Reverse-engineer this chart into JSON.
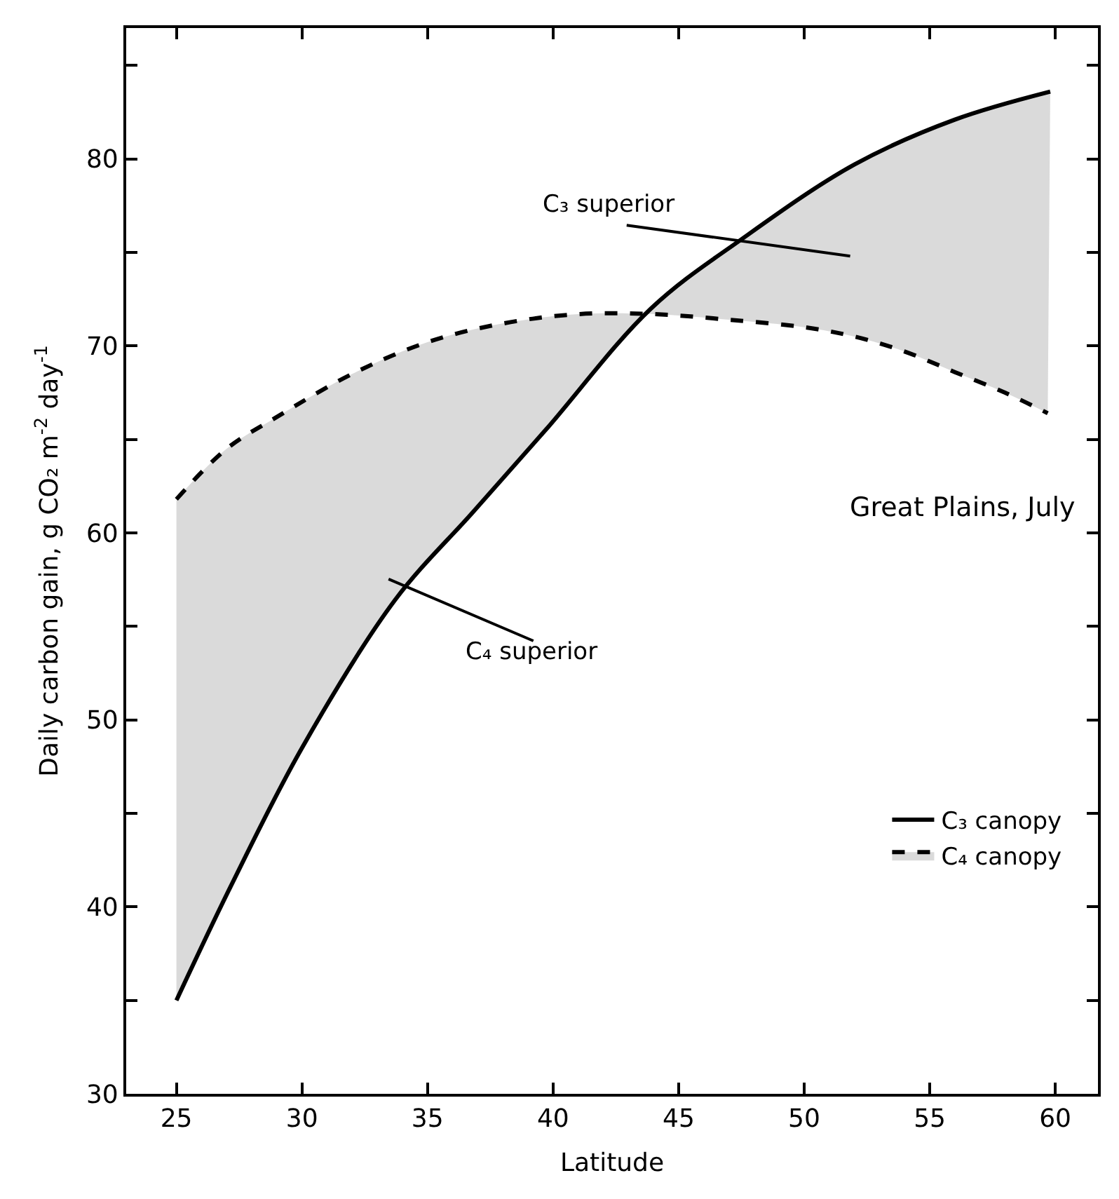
{
  "chart_data": {
    "type": "line",
    "xlabel": "Latitude",
    "ylabel": "Daily carbon gain, g CO₂ m$^{-2}$ day$^{-1}$",
    "series": [
      {
        "name": "C₃ canopy",
        "color": "#000000",
        "line_style": "solid",
        "x": [
          25,
          27.2,
          30,
          33.7,
          36.8,
          39.7,
          43.9,
          47.5,
          52,
          56,
          59.8
        ],
        "values": [
          35,
          41.2,
          48.5,
          56.4,
          61.1,
          65.5,
          72,
          75.7,
          79.7,
          82.1,
          83.6
        ]
      },
      {
        "name": "C₄ canopy",
        "color": "#000000",
        "line_style": "dashed",
        "x": [
          25,
          27,
          29,
          32,
          35,
          38,
          41,
          44,
          47,
          50,
          52,
          54,
          56,
          58,
          59.7
        ],
        "values": [
          61.8,
          64.5,
          66.2,
          68.5,
          70.2,
          71.2,
          71.7,
          71.7,
          71.4,
          71,
          70.5,
          69.7,
          68.6,
          67.5,
          66.4
        ]
      }
    ],
    "xlim": [
      23,
      61.7
    ],
    "xticks": [
      25,
      30,
      35,
      40,
      45,
      50,
      55,
      60
    ],
    "ylim": [
      30,
      87
    ],
    "yticks": [
      30,
      {
        "value": 35,
        "label": null
      },
      40,
      {
        "value": 45,
        "label": null
      },
      50,
      {
        "value": 55,
        "label": null
      },
      60,
      {
        "value": 65,
        "label": null
      },
      70,
      {
        "value": 75,
        "label": null
      },
      80,
      {
        "value": 85,
        "label": null
      }
    ],
    "annotations": [
      "C₃ superior",
      "C₄ superior",
      "Great Plains, July"
    ],
    "legend": "bottom right",
    "marker": "none"
  }
}
